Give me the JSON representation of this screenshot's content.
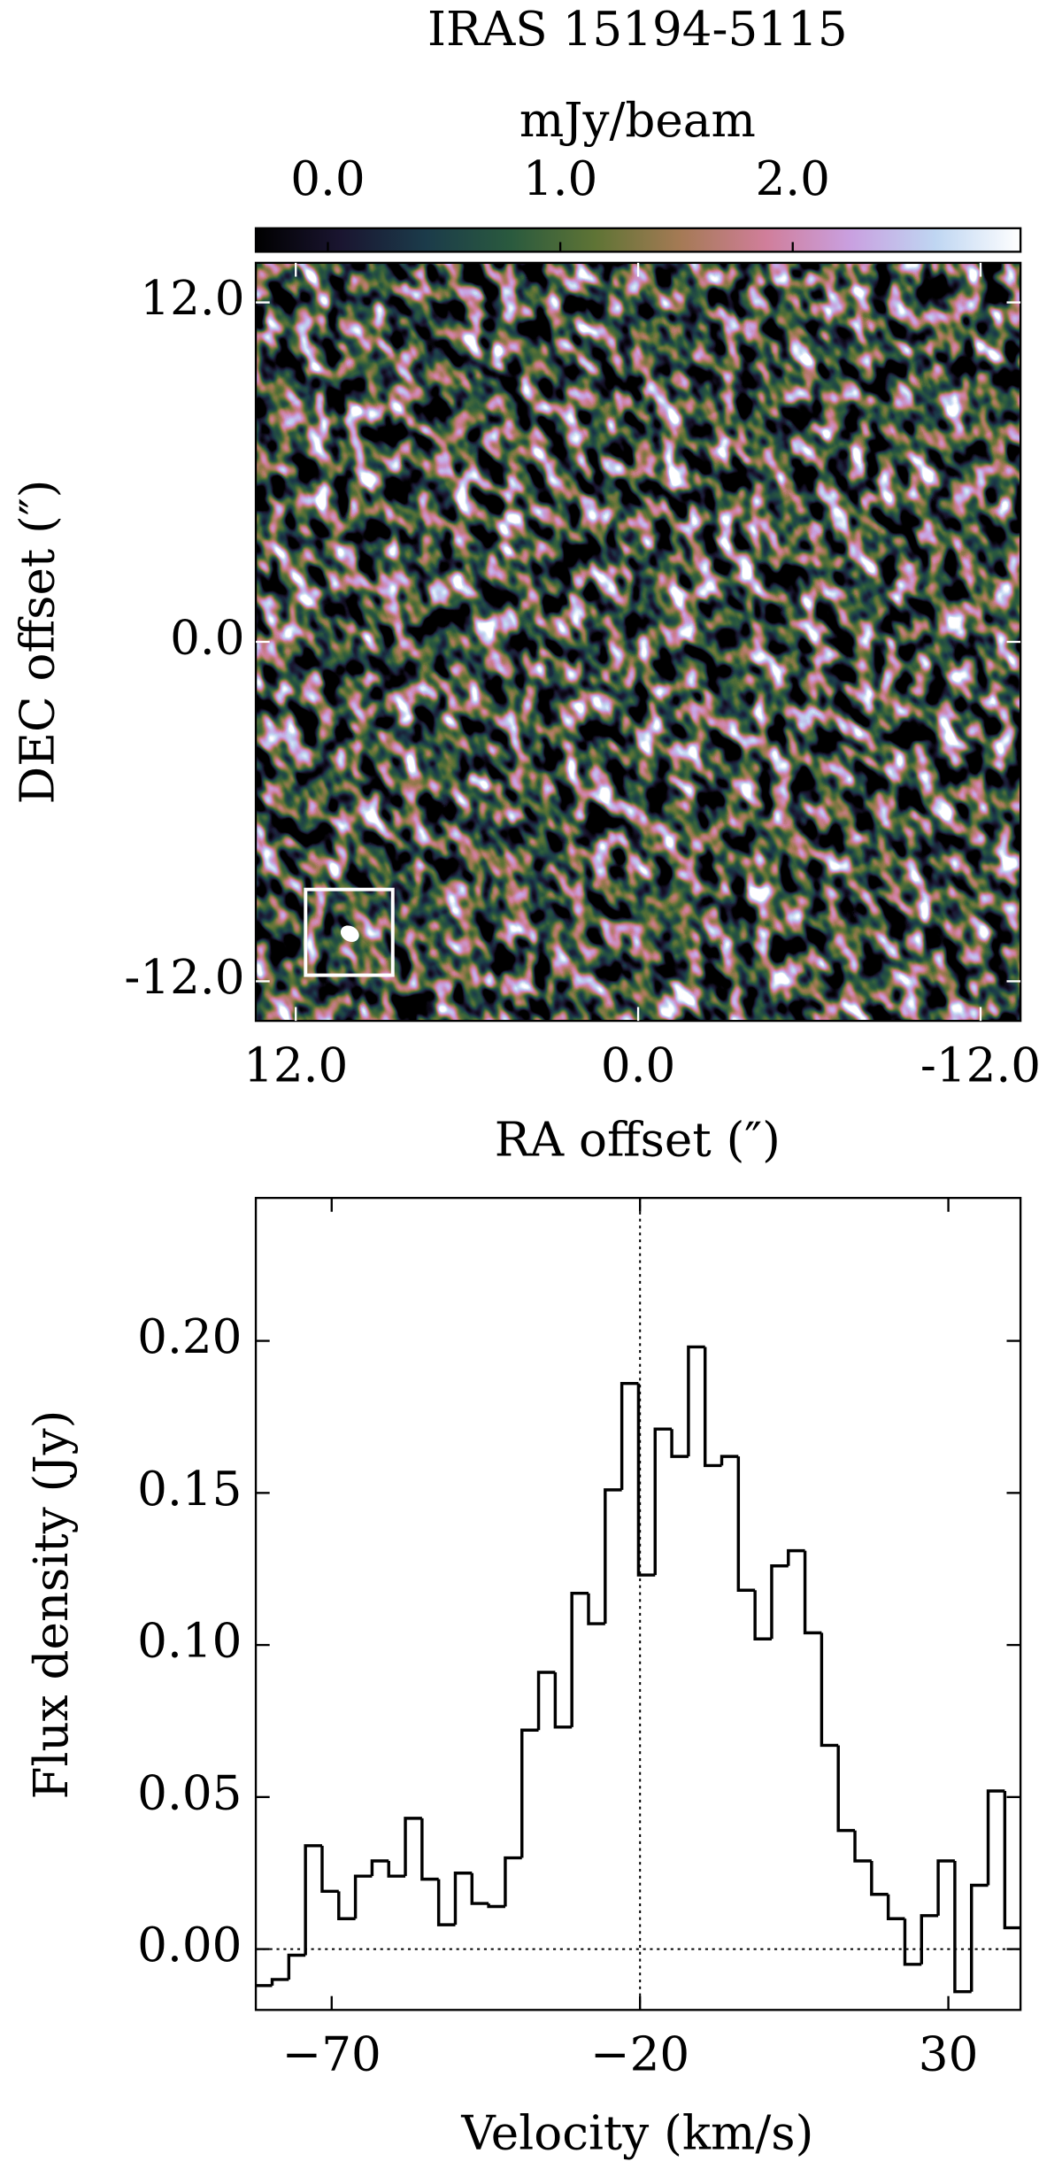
{
  "chart_data": [
    {
      "type": "image",
      "title": "IRAS 15194-5115",
      "colorbar": {
        "label": "mJy/beam",
        "lim": [
          -0.31,
          2.98
        ],
        "ticks": [
          {
            "value": 0,
            "label": "0.0"
          },
          {
            "value": 1,
            "label": "1.0"
          },
          {
            "value": 2,
            "label": "2.0"
          }
        ],
        "colormap": [
          "#000000",
          "#1a1530",
          "#1b3b4a",
          "#2a5a3e",
          "#5f7435",
          "#a57a55",
          "#d07e9a",
          "#c9a0e0",
          "#bfd6f2",
          "#ffffff"
        ]
      },
      "xlabel": "RA offset (″)",
      "ylabel": "DEC offset (″)",
      "xlim": [
        13.4,
        -13.4
      ],
      "ylim": [
        -13.4,
        13.4
      ],
      "xticks": [
        {
          "value": 12,
          "label": "12.0"
        },
        {
          "value": 0,
          "label": "0.0"
        },
        {
          "value": -12,
          "label": "-12.0"
        }
      ],
      "yticks": [
        {
          "value": 12,
          "label": "12.0"
        },
        {
          "value": 0,
          "label": "0.0"
        },
        {
          "value": -12,
          "label": "-12.0"
        }
      ]
    },
    {
      "type": "step",
      "xlabel": "Velocity (km/s)",
      "ylabel": "Flux density (Jy)",
      "x": [
        -81,
        -78.3,
        -75.6,
        -72.9,
        -70.2,
        -67.5,
        -64.8,
        -62.1,
        -59.4,
        -56.7,
        -54,
        -51.3,
        -48.6,
        -45.9,
        -43.2,
        -40.5,
        -37.8,
        -35.1,
        -32.4,
        -29.7,
        -27,
        -24.3,
        -21.6,
        -18.9,
        -16.2,
        -13.5,
        -10.8,
        -8.1,
        -5.4,
        -2.7,
        0,
        2.7,
        5.4,
        8.1,
        10.8,
        13.5,
        16.2,
        18.9,
        21.6,
        24.3,
        27,
        29.7,
        32.4,
        35.1,
        37.8,
        40.5
      ],
      "values": [
        -0.012,
        -0.01,
        -0.002,
        0.034,
        0.019,
        0.01,
        0.024,
        0.029,
        0.024,
        0.043,
        0.023,
        0.008,
        0.025,
        0.015,
        0.014,
        0.03,
        0.072,
        0.091,
        0.073,
        0.117,
        0.107,
        0.151,
        0.186,
        0.123,
        0.171,
        0.162,
        0.198,
        0.159,
        0.162,
        0.118,
        0.102,
        0.126,
        0.131,
        0.104,
        0.067,
        0.039,
        0.029,
        0.018,
        0.01,
        -0.005,
        0.011,
        0.029,
        -0.014,
        0.021,
        0.052,
        0.007
      ],
      "color": "#000000",
      "xlim": [
        -82.3,
        41.7
      ],
      "ylim": [
        -0.02,
        0.247
      ],
      "xticks": [
        {
          "value": -70,
          "label": "−70"
        },
        {
          "value": -20,
          "label": "−20"
        },
        30
      ],
      "yticks": [
        {
          "value": 0,
          "label": "0.00"
        },
        {
          "value": 0.05,
          "label": "0.05"
        },
        {
          "value": 0.1,
          "label": "0.10"
        },
        {
          "value": 0.15,
          "label": "0.15"
        },
        {
          "value": 0.2,
          "label": "0.20"
        }
      ],
      "reference_lines": {
        "x": -20,
        "y": 0
      }
    }
  ]
}
